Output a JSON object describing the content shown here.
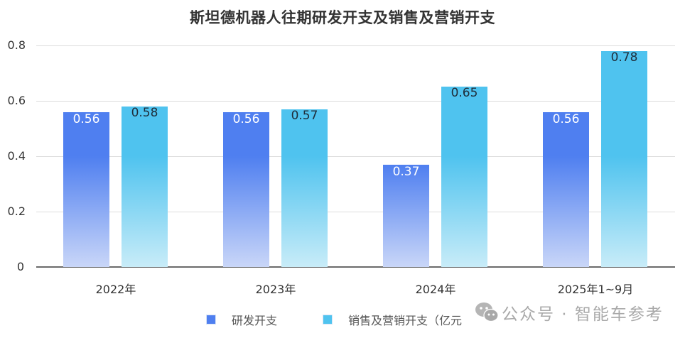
{
  "title": "斯坦德机器人往期研发开支及销售及营销开支",
  "y_axis": {
    "ticks": [
      "0",
      "0.2",
      "0.4",
      "0.6",
      "0.8"
    ]
  },
  "x_axis": {
    "ticks": [
      "2022年",
      "2023年",
      "2024年",
      "2025年1~9月"
    ]
  },
  "legend": {
    "items": [
      {
        "label": "研发开支",
        "color": "#4f7ff0"
      },
      {
        "label": "销售及营销开支（亿元",
        "color": "#4fc3ef"
      }
    ]
  },
  "watermark": {
    "icon": "wechat-icon",
    "text": "公众号 · 智能车参考"
  },
  "bars": {
    "rd": [
      {
        "value": "0.56"
      },
      {
        "value": "0.56"
      },
      {
        "value": "0.37"
      },
      {
        "value": "0.56"
      }
    ],
    "sm": [
      {
        "value": "0.58"
      },
      {
        "value": "0.57"
      },
      {
        "value": "0.65"
      },
      {
        "value": "0.78"
      }
    ]
  },
  "colors": {
    "rd_top": "#4f7ff0",
    "rd_bottom": "#c9d6f8",
    "sm_top": "#4fc3ef",
    "sm_bottom": "#c8ecf8",
    "title": "#333333",
    "grid": "#dcdcdc",
    "axis": "#6b6b6b"
  },
  "chart_data": {
    "type": "bar",
    "title": "斯坦德机器人往期研发开支及销售及营销开支",
    "categories": [
      "2022年",
      "2023年",
      "2024年",
      "2025年1~9月"
    ],
    "series": [
      {
        "name": "研发开支",
        "values": [
          0.56,
          0.56,
          0.37,
          0.56
        ],
        "color": "#4f7ff0"
      },
      {
        "name": "销售及营销开支（亿元）",
        "values": [
          0.58,
          0.57,
          0.65,
          0.78
        ],
        "color": "#4fc3ef"
      }
    ],
    "xlabel": "",
    "ylabel": "",
    "ylim": [
      0,
      0.8
    ],
    "yticks": [
      0,
      0.2,
      0.4,
      0.6,
      0.8
    ],
    "grid": true,
    "legend_position": "bottom",
    "data_labels": true
  }
}
